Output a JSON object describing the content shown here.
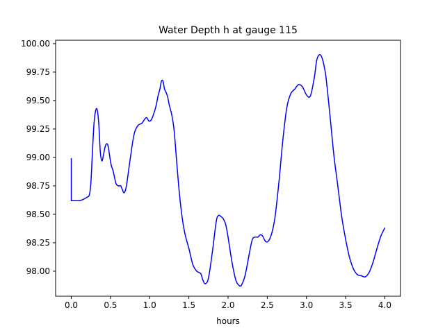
{
  "chart_data": {
    "type": "line",
    "title": "Water Depth h at gauge 115",
    "xlabel": "hours",
    "ylabel": "",
    "xlim": [
      -0.2,
      4.2
    ],
    "ylim": [
      97.78,
      100.03
    ],
    "x_ticks": [
      0.0,
      0.5,
      1.0,
      1.5,
      2.0,
      2.5,
      3.0,
      3.5,
      4.0
    ],
    "x_tick_labels": [
      "0.0",
      "0.5",
      "1.0",
      "1.5",
      "2.0",
      "2.5",
      "3.0",
      "3.5",
      "4.0"
    ],
    "y_ticks": [
      98.0,
      98.25,
      98.5,
      98.75,
      99.0,
      99.25,
      99.5,
      99.75,
      100.0
    ],
    "y_tick_labels": [
      "98.00",
      "98.25",
      "98.50",
      "98.75",
      "99.00",
      "99.25",
      "99.50",
      "99.75",
      "100.00"
    ],
    "grid": false,
    "series": [
      {
        "color": "#0000ff",
        "x": [
          0.0,
          0.0,
          0.05,
          0.1,
          0.15,
          0.2,
          0.23,
          0.25,
          0.27,
          0.29,
          0.31,
          0.33,
          0.35,
          0.37,
          0.39,
          0.41,
          0.43,
          0.45,
          0.47,
          0.49,
          0.51,
          0.53,
          0.55,
          0.57,
          0.6,
          0.63,
          0.65,
          0.67,
          0.69,
          0.71,
          0.75,
          0.8,
          0.85,
          0.9,
          0.93,
          0.96,
          0.99,
          1.02,
          1.05,
          1.08,
          1.11,
          1.13,
          1.15,
          1.17,
          1.19,
          1.21,
          1.23,
          1.25,
          1.28,
          1.31,
          1.34,
          1.37,
          1.4,
          1.43,
          1.46,
          1.5,
          1.55,
          1.6,
          1.65,
          1.68,
          1.71,
          1.75,
          1.8,
          1.85,
          1.88,
          1.91,
          1.94,
          1.97,
          2.0,
          2.05,
          2.1,
          2.15,
          2.18,
          2.22,
          2.27,
          2.31,
          2.35,
          2.38,
          2.41,
          2.44,
          2.48,
          2.52,
          2.56,
          2.6,
          2.65,
          2.7,
          2.75,
          2.8,
          2.85,
          2.9,
          2.95,
          3.0,
          3.05,
          3.1,
          3.13,
          3.16,
          3.19,
          3.22,
          3.25,
          3.3,
          3.35,
          3.4,
          3.45,
          3.5,
          3.55,
          3.6,
          3.65,
          3.7,
          3.75,
          3.8,
          3.85,
          3.9,
          3.95,
          4.0
        ],
        "values": [
          98.99,
          98.62,
          98.62,
          98.62,
          98.63,
          98.65,
          98.67,
          98.78,
          99.05,
          99.3,
          99.41,
          99.42,
          99.3,
          99.05,
          98.97,
          99.02,
          99.09,
          99.12,
          99.1,
          99.01,
          98.93,
          98.89,
          98.83,
          98.77,
          98.75,
          98.75,
          98.72,
          98.69,
          98.71,
          98.78,
          98.98,
          99.2,
          99.28,
          99.3,
          99.33,
          99.35,
          99.32,
          99.33,
          99.38,
          99.45,
          99.55,
          99.6,
          99.67,
          99.67,
          99.6,
          99.57,
          99.53,
          99.46,
          99.38,
          99.25,
          99.0,
          98.75,
          98.55,
          98.4,
          98.3,
          98.2,
          98.06,
          98.0,
          97.98,
          97.92,
          97.89,
          97.94,
          98.17,
          98.44,
          98.49,
          98.48,
          98.46,
          98.41,
          98.3,
          98.08,
          97.92,
          97.87,
          97.89,
          97.97,
          98.15,
          98.28,
          98.3,
          98.3,
          98.32,
          98.31,
          98.26,
          98.27,
          98.34,
          98.48,
          98.79,
          99.16,
          99.44,
          99.56,
          99.6,
          99.64,
          99.62,
          99.55,
          99.54,
          99.7,
          99.85,
          99.9,
          99.89,
          99.82,
          99.7,
          99.37,
          99.02,
          98.75,
          98.48,
          98.28,
          98.12,
          98.02,
          97.97,
          97.96,
          97.95,
          97.99,
          98.08,
          98.2,
          98.31,
          98.38
        ]
      }
    ]
  }
}
